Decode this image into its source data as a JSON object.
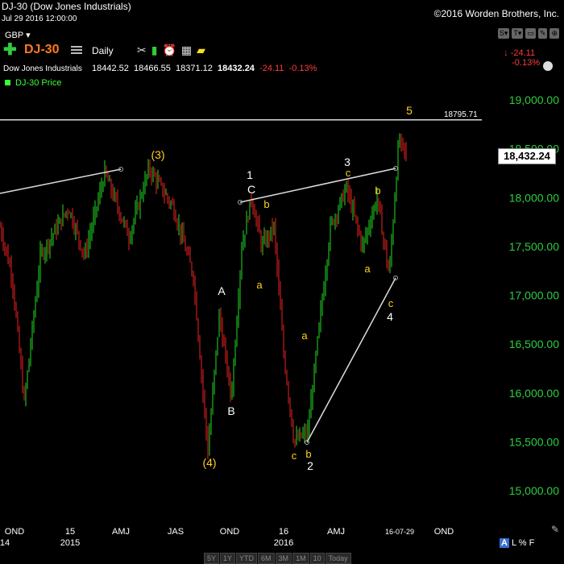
{
  "header": {
    "title": "DJ-30 (Dow Jones Industrials)",
    "date": "Jul 29 2016 12:00:00",
    "copyright": "©2016 Worden Brothers, Inc.",
    "currency": "GBP ▾",
    "toolbar_buttons": [
      "S▾",
      "T▾",
      "▭",
      "✎",
      "⊕"
    ]
  },
  "symbol_bar": {
    "symbol": "DJ-30",
    "period": "Daily",
    "change_arrow": "↓",
    "change_abs": "-24.11",
    "change_pct": "-0.13%"
  },
  "quote": {
    "name": "Dow Jones Industrials",
    "open": "18442.52",
    "high": "18466.55",
    "low": "18371.12",
    "last": "18432.24",
    "change": "-24.11",
    "change_pct": "-0.13%"
  },
  "legend": {
    "label": "DJ-30 Price"
  },
  "price_tag": "18,432.24",
  "reference_line_label": "18795.71",
  "colors": {
    "up": "#22dd22",
    "down": "#ee2222",
    "label_yellow": "#ffd21e",
    "accent": "#ff7a1a"
  },
  "chart_data": {
    "type": "candlestick",
    "title": "DJ-30 Price",
    "y_ticks": [
      "19,000.00",
      "18,500.00",
      "18,000.00",
      "17,500.00",
      "17,000.00",
      "16,500.00",
      "16,000.00",
      "15,500.00",
      "15,000.00"
    ],
    "ylim": [
      14800,
      19250
    ],
    "x_ticks": [
      {
        "label": "OND",
        "sub": "14"
      },
      {
        "label": "15",
        "sub": "2015"
      },
      {
        "label": "AMJ",
        "sub": ""
      },
      {
        "label": "JAS",
        "sub": ""
      },
      {
        "label": "OND",
        "sub": ""
      },
      {
        "label": "16",
        "sub": "2016"
      },
      {
        "label": "AMJ",
        "sub": ""
      },
      {
        "label": "16-07-29",
        "sub": ""
      },
      {
        "label": "OND",
        "sub": ""
      }
    ],
    "annotations": [
      {
        "text": "(3)",
        "color": "yellow"
      },
      {
        "text": "(4)",
        "color": "yellow"
      },
      {
        "text": "1",
        "color": "white"
      },
      {
        "text": "C",
        "color": "white"
      },
      {
        "text": "b",
        "color": "yellow"
      },
      {
        "text": "a",
        "color": "yellow"
      },
      {
        "text": "A",
        "color": "white"
      },
      {
        "text": "B",
        "color": "white"
      },
      {
        "text": "a",
        "color": "yellow"
      },
      {
        "text": "c",
        "color": "yellow"
      },
      {
        "text": "b",
        "color": "yellow"
      },
      {
        "text": "2",
        "color": "white"
      },
      {
        "text": "3",
        "color": "white"
      },
      {
        "text": "c",
        "color": "yellow"
      },
      {
        "text": "b",
        "color": "yellow"
      },
      {
        "text": "a",
        "color": "yellow"
      },
      {
        "text": "c",
        "color": "yellow"
      },
      {
        "text": "4",
        "color": "white"
      },
      {
        "text": "5",
        "color": "yellow"
      }
    ],
    "horizontal_line": 18795.71
  },
  "bottom_bar": [
    "5Y",
    "1Y",
    "YTD",
    "6M",
    "3M",
    "1M",
    "10",
    "Today"
  ],
  "scale_toggles": {
    "a": "A",
    "l": "L",
    "pct": "%",
    "f": "F"
  }
}
